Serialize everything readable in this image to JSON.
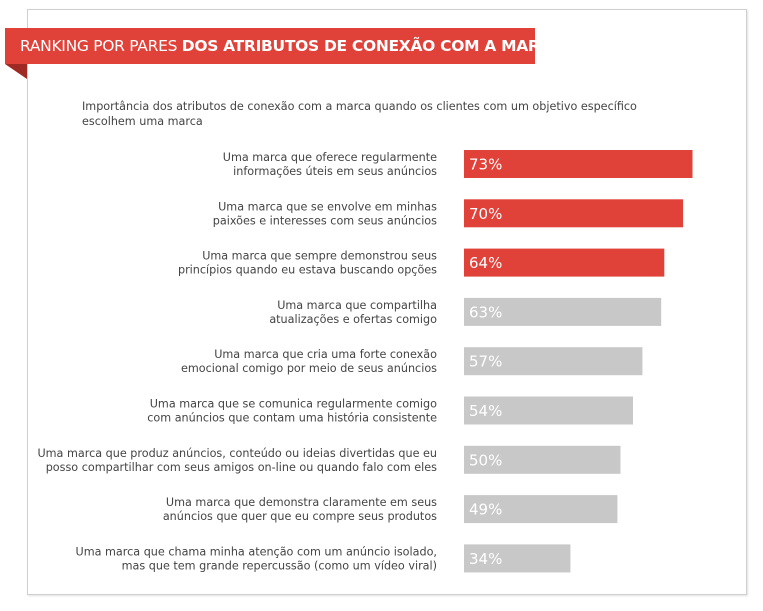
{
  "colors": {
    "highlight": "#e04139",
    "neutral": "#c8c8c8",
    "label_text": "#444444",
    "value_text": "#ffffff"
  },
  "header": {
    "title_light": "RANKING POR PARES",
    "title_bold": "DOS ATRIBUTOS DE CONEXÃO COM A MARCA",
    "subtitle": "Importância dos atributos de conexão com a marca quando os clientes com um objetivo específico escolhem uma marca"
  },
  "chart_data": {
    "type": "bar",
    "orientation": "horizontal",
    "title": "RANKING POR PARES DOS ATRIBUTOS DE CONEXÃO COM A MARCA",
    "subtitle": "Importância dos atributos de conexão com a marca quando os clientes com um objetivo específico escolhem uma marca",
    "unit": "%",
    "xlim": [
      0,
      100
    ],
    "grid": false,
    "legend": "none",
    "categories": [
      [
        "Uma marca que oferece regularmente",
        "informações úteis em seus anúncios"
      ],
      [
        "Uma marca que se envolve em minhas",
        "paixões e interesses com seus anúncios"
      ],
      [
        "Uma marca que sempre demonstrou seus",
        "princípios quando eu estava buscando opções"
      ],
      [
        "Uma marca que compartilha",
        "atualizações e ofertas comigo"
      ],
      [
        "Uma marca que cria uma forte conexão",
        "emocional comigo por meio de seus anúncios"
      ],
      [
        "Uma marca que se comunica regularmente comigo",
        "com anúncios que contam uma história consistente"
      ],
      [
        "Uma marca que produz anúncios, conteúdo ou ideias divertidas que eu",
        "posso compartilhar com seus amigos on-line ou quando falo com eles"
      ],
      [
        "Uma marca que demonstra claramente em seus",
        "anúncios que quer que eu compre seus produtos"
      ],
      [
        "Uma marca que chama minha atenção com um anúncio isolado,",
        "mas que tem grande repercussão (como um vídeo viral)"
      ]
    ],
    "values": [
      73,
      70,
      64,
      63,
      57,
      54,
      50,
      49,
      34
    ],
    "value_labels": [
      "73%",
      "70%",
      "64%",
      "63%",
      "57%",
      "54%",
      "50%",
      "49%",
      "34%"
    ],
    "highlighted": [
      true,
      true,
      true,
      false,
      false,
      false,
      false,
      false,
      false
    ]
  }
}
